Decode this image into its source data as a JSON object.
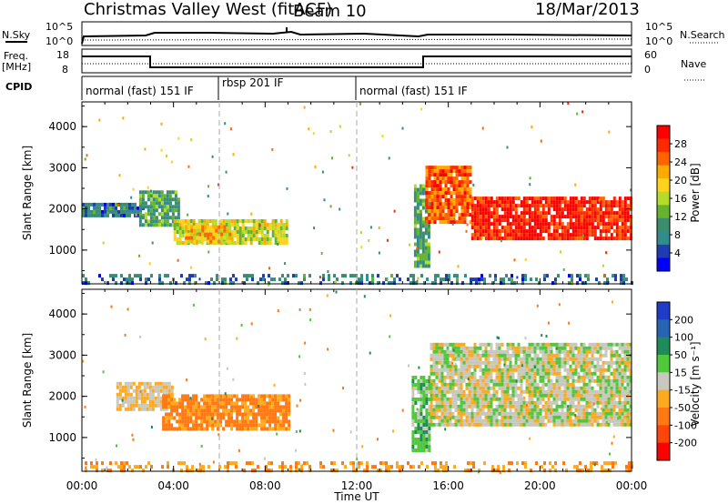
{
  "header": {
    "title": "Christmas Valley West (fitACF)",
    "beam": "Beam 10",
    "date": "18/Mar/2013"
  },
  "summary_panels": {
    "nsky_label": "N.Sky",
    "nsky_ticks": [
      "10^5",
      "10^0"
    ],
    "nsearch_label": "N.Search",
    "freq_label": "Freq.",
    "freq_unit": "[MHz]",
    "freq_ticks": [
      "18",
      "8"
    ],
    "nave_label": "Nave",
    "nave_ticks": [
      "60",
      "0"
    ],
    "cpid_label": "CPID",
    "cpid_segments": [
      {
        "label": "normal (fast) 151 IF",
        "start_hour": 0,
        "end_hour": 6
      },
      {
        "label": "rbsp 201 IF",
        "start_hour": 6,
        "end_hour": 12
      },
      {
        "label": "normal (fast) 151 IF",
        "start_hour": 12,
        "end_hour": 24
      }
    ]
  },
  "colorbars": {
    "power": {
      "label": "Power [dB]",
      "ticks": [
        "28",
        "24",
        "20",
        "16",
        "12",
        "8",
        "4"
      ],
      "colors": [
        "#ff0000",
        "#ff2a00",
        "#ff6400",
        "#ffaa00",
        "#ffd21e",
        "#b4dc28",
        "#64b432",
        "#3c8c6e",
        "#328c8c",
        "#1e3cb4",
        "#0000ff"
      ]
    },
    "velocity": {
      "label": "Velocity [m s⁻¹]",
      "ticks": [
        "200",
        "100",
        "50",
        "15",
        "-15",
        "-50",
        "-100",
        "-200"
      ],
      "colors": [
        "#1e3cc8",
        "#2864b4",
        "#1e8c5a",
        "#50c83c",
        "#c8c8be",
        "#ffaa1e",
        "#ff7814",
        "#ff460a",
        "#ff0000"
      ]
    }
  },
  "axes": {
    "xlabel": "Time UT",
    "xticks": [
      "00:00",
      "04:00",
      "08:00",
      "12:00",
      "16:00",
      "20:00",
      "00:00"
    ],
    "ylabel": "Slant Range [km]",
    "yticks": [
      "4000",
      "3000",
      "2000",
      "1000"
    ]
  },
  "chart_data": [
    {
      "type": "heatmap",
      "name": "Power",
      "xlabel": "Time UT",
      "ylabel": "Slant Range [km]",
      "xlim": [
        0,
        24
      ],
      "ylim": [
        180,
        4600
      ],
      "colorbar": "Power [dB]",
      "regions": [
        {
          "t": [
            0.0,
            2.7
          ],
          "r": [
            1850,
            2150
          ],
          "value_db": 6
        },
        {
          "t": [
            2.5,
            4.2
          ],
          "r": [
            1600,
            2450
          ],
          "value_db": 10
        },
        {
          "t": [
            4.0,
            9.0
          ],
          "r": [
            1150,
            1750
          ],
          "value_db": 16
        },
        {
          "t": [
            4.5,
            6.5
          ],
          "r": [
            1200,
            1600
          ],
          "value_db": 20
        },
        {
          "t": [
            14.5,
            15.2
          ],
          "r": [
            600,
            2600
          ],
          "value_db": 10
        },
        {
          "t": [
            15.0,
            17.0
          ],
          "r": [
            1650,
            3050
          ],
          "value_db": 25
        },
        {
          "t": [
            17.0,
            24.0
          ],
          "r": [
            1250,
            2300
          ],
          "value_db": 28
        },
        {
          "t": [
            0.0,
            24.0
          ],
          "r": [
            180,
            420
          ],
          "value_db": 6
        }
      ]
    },
    {
      "type": "heatmap",
      "name": "Velocity",
      "xlabel": "Time UT",
      "ylabel": "Slant Range [km]",
      "xlim": [
        0,
        24
      ],
      "ylim": [
        180,
        4600
      ],
      "colorbar": "Velocity [m s-1]",
      "regions": [
        {
          "t": [
            1.5,
            4.0
          ],
          "r": [
            1700,
            2350
          ],
          "value_ms": -20
        },
        {
          "t": [
            3.5,
            9.0
          ],
          "r": [
            1200,
            2050
          ],
          "value_ms": -60
        },
        {
          "t": [
            14.4,
            15.2
          ],
          "r": [
            700,
            2500
          ],
          "value_ms": 30
        },
        {
          "t": [
            15.2,
            24.0
          ],
          "r": [
            1300,
            3300
          ],
          "value_ms": 0
        },
        {
          "t": [
            0.0,
            24.0
          ],
          "r": [
            180,
            420
          ],
          "value_ms": -50
        }
      ]
    }
  ]
}
